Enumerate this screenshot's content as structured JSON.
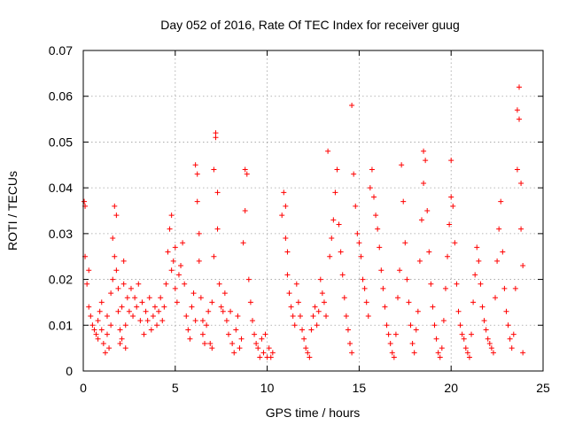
{
  "chart_data": {
    "type": "scatter",
    "title": "Day 052 of 2016, Rate Of TEC Index for receiver guug",
    "xlabel": "GPS time / hours",
    "ylabel": "ROTI / TECUs",
    "xlim": [
      0,
      25
    ],
    "ylim": [
      0,
      0.07
    ],
    "xticks": [
      0,
      5,
      10,
      15,
      20,
      25
    ],
    "xtick_labels": [
      "0",
      "5",
      "10",
      "15",
      "20",
      "25"
    ],
    "yticks": [
      0,
      0.01,
      0.02,
      0.03,
      0.04,
      0.05,
      0.06,
      0.07
    ],
    "ytick_labels": [
      "0",
      "0.01",
      "0.02",
      "0.03",
      "0.04",
      "0.05",
      "0.06",
      "0.07"
    ],
    "grid": true,
    "marker": "plus",
    "color": "#ff0000",
    "series": [
      {
        "name": "ROTI",
        "points": [
          [
            0.05,
            0.037
          ],
          [
            0.1,
            0.036
          ],
          [
            0.1,
            0.025
          ],
          [
            0.2,
            0.019
          ],
          [
            0.3,
            0.022
          ],
          [
            0.3,
            0.014
          ],
          [
            0.4,
            0.012
          ],
          [
            0.5,
            0.01
          ],
          [
            0.6,
            0.009
          ],
          [
            0.7,
            0.008
          ],
          [
            0.8,
            0.007
          ],
          [
            0.8,
            0.011
          ],
          [
            0.9,
            0.013
          ],
          [
            1.0,
            0.015
          ],
          [
            1.0,
            0.009
          ],
          [
            1.1,
            0.006
          ],
          [
            1.2,
            0.004
          ],
          [
            1.3,
            0.008
          ],
          [
            1.3,
            0.012
          ],
          [
            1.4,
            0.005
          ],
          [
            1.5,
            0.01
          ],
          [
            1.5,
            0.017
          ],
          [
            1.6,
            0.02
          ],
          [
            1.6,
            0.029
          ],
          [
            1.7,
            0.025
          ],
          [
            1.7,
            0.036
          ],
          [
            1.8,
            0.034
          ],
          [
            1.8,
            0.022
          ],
          [
            1.9,
            0.018
          ],
          [
            1.9,
            0.013
          ],
          [
            2.0,
            0.009
          ],
          [
            2.0,
            0.006
          ],
          [
            2.1,
            0.007
          ],
          [
            2.1,
            0.014
          ],
          [
            2.2,
            0.019
          ],
          [
            2.2,
            0.024
          ],
          [
            2.3,
            0.005
          ],
          [
            2.3,
            0.01
          ],
          [
            2.4,
            0.016
          ],
          [
            2.5,
            0.013
          ],
          [
            2.6,
            0.018
          ],
          [
            2.7,
            0.012
          ],
          [
            2.8,
            0.016
          ],
          [
            2.9,
            0.014
          ],
          [
            3.0,
            0.019
          ],
          [
            3.1,
            0.011
          ],
          [
            3.2,
            0.015
          ],
          [
            3.3,
            0.008
          ],
          [
            3.4,
            0.013
          ],
          [
            3.5,
            0.011
          ],
          [
            3.6,
            0.016
          ],
          [
            3.7,
            0.009
          ],
          [
            3.8,
            0.012
          ],
          [
            3.9,
            0.014
          ],
          [
            4.0,
            0.01
          ],
          [
            4.1,
            0.013
          ],
          [
            4.2,
            0.016
          ],
          [
            4.3,
            0.011
          ],
          [
            4.4,
            0.014
          ],
          [
            4.5,
            0.019
          ],
          [
            4.6,
            0.026
          ],
          [
            4.7,
            0.031
          ],
          [
            4.8,
            0.034
          ],
          [
            4.8,
            0.022
          ],
          [
            4.9,
            0.024
          ],
          [
            5.0,
            0.027
          ],
          [
            5.0,
            0.018
          ],
          [
            5.1,
            0.015
          ],
          [
            5.2,
            0.021
          ],
          [
            5.3,
            0.023
          ],
          [
            5.4,
            0.028
          ],
          [
            5.5,
            0.019
          ],
          [
            5.6,
            0.012
          ],
          [
            5.7,
            0.009
          ],
          [
            5.8,
            0.007
          ],
          [
            5.9,
            0.014
          ],
          [
            6.0,
            0.017
          ],
          [
            6.1,
            0.011
          ],
          [
            6.1,
            0.045
          ],
          [
            6.2,
            0.043
          ],
          [
            6.2,
            0.037
          ],
          [
            6.3,
            0.03
          ],
          [
            6.3,
            0.024
          ],
          [
            6.4,
            0.016
          ],
          [
            6.5,
            0.011
          ],
          [
            6.5,
            0.008
          ],
          [
            6.6,
            0.006
          ],
          [
            6.7,
            0.01
          ],
          [
            6.8,
            0.013
          ],
          [
            6.9,
            0.006
          ],
          [
            7.0,
            0.005
          ],
          [
            7.0,
            0.015
          ],
          [
            7.1,
            0.025
          ],
          [
            7.1,
            0.044
          ],
          [
            7.2,
            0.052
          ],
          [
            7.2,
            0.051
          ],
          [
            7.3,
            0.039
          ],
          [
            7.3,
            0.031
          ],
          [
            7.4,
            0.019
          ],
          [
            7.5,
            0.014
          ],
          [
            7.6,
            0.013
          ],
          [
            7.7,
            0.017
          ],
          [
            7.8,
            0.011
          ],
          [
            7.9,
            0.008
          ],
          [
            8.0,
            0.013
          ],
          [
            8.1,
            0.006
          ],
          [
            8.2,
            0.004
          ],
          [
            8.3,
            0.009
          ],
          [
            8.4,
            0.012
          ],
          [
            8.5,
            0.005
          ],
          [
            8.6,
            0.007
          ],
          [
            8.7,
            0.028
          ],
          [
            8.8,
            0.035
          ],
          [
            8.8,
            0.044
          ],
          [
            8.9,
            0.043
          ],
          [
            9.0,
            0.02
          ],
          [
            9.1,
            0.015
          ],
          [
            9.2,
            0.011
          ],
          [
            9.3,
            0.008
          ],
          [
            9.4,
            0.006
          ],
          [
            9.5,
            0.005
          ],
          [
            9.6,
            0.003
          ],
          [
            9.7,
            0.007
          ],
          [
            9.8,
            0.004
          ],
          [
            9.9,
            0.008
          ],
          [
            10.0,
            0.003
          ],
          [
            10.1,
            0.005
          ],
          [
            10.2,
            0.003
          ],
          [
            10.3,
            0.004
          ],
          [
            10.8,
            0.034
          ],
          [
            10.9,
            0.039
          ],
          [
            11.0,
            0.036
          ],
          [
            11.0,
            0.029
          ],
          [
            11.1,
            0.026
          ],
          [
            11.1,
            0.021
          ],
          [
            11.2,
            0.017
          ],
          [
            11.3,
            0.014
          ],
          [
            11.4,
            0.012
          ],
          [
            11.5,
            0.01
          ],
          [
            11.6,
            0.019
          ],
          [
            11.7,
            0.015
          ],
          [
            11.8,
            0.012
          ],
          [
            11.9,
            0.009
          ],
          [
            12.0,
            0.007
          ],
          [
            12.1,
            0.005
          ],
          [
            12.2,
            0.004
          ],
          [
            12.3,
            0.003
          ],
          [
            12.4,
            0.009
          ],
          [
            12.5,
            0.012
          ],
          [
            12.6,
            0.014
          ],
          [
            12.7,
            0.01
          ],
          [
            12.8,
            0.013
          ],
          [
            12.9,
            0.02
          ],
          [
            13.0,
            0.017
          ],
          [
            13.1,
            0.015
          ],
          [
            13.2,
            0.012
          ],
          [
            13.3,
            0.048
          ],
          [
            13.4,
            0.025
          ],
          [
            13.5,
            0.029
          ],
          [
            13.6,
            0.033
          ],
          [
            13.7,
            0.039
          ],
          [
            13.8,
            0.044
          ],
          [
            13.9,
            0.032
          ],
          [
            14.0,
            0.026
          ],
          [
            14.1,
            0.021
          ],
          [
            14.2,
            0.016
          ],
          [
            14.3,
            0.012
          ],
          [
            14.4,
            0.009
          ],
          [
            14.5,
            0.006
          ],
          [
            14.6,
            0.004
          ],
          [
            14.6,
            0.058
          ],
          [
            14.7,
            0.043
          ],
          [
            14.8,
            0.036
          ],
          [
            14.9,
            0.03
          ],
          [
            15.0,
            0.028
          ],
          [
            15.1,
            0.025
          ],
          [
            15.2,
            0.02
          ],
          [
            15.3,
            0.018
          ],
          [
            15.4,
            0.015
          ],
          [
            15.5,
            0.012
          ],
          [
            15.6,
            0.04
          ],
          [
            15.7,
            0.044
          ],
          [
            15.8,
            0.038
          ],
          [
            15.9,
            0.034
          ],
          [
            16.0,
            0.031
          ],
          [
            16.1,
            0.027
          ],
          [
            16.2,
            0.022
          ],
          [
            16.3,
            0.018
          ],
          [
            16.4,
            0.014
          ],
          [
            16.5,
            0.01
          ],
          [
            16.6,
            0.008
          ],
          [
            16.7,
            0.006
          ],
          [
            16.8,
            0.004
          ],
          [
            16.9,
            0.003
          ],
          [
            17.0,
            0.008
          ],
          [
            17.1,
            0.016
          ],
          [
            17.2,
            0.022
          ],
          [
            17.3,
            0.045
          ],
          [
            17.4,
            0.037
          ],
          [
            17.5,
            0.028
          ],
          [
            17.6,
            0.02
          ],
          [
            17.7,
            0.015
          ],
          [
            17.8,
            0.01
          ],
          [
            17.9,
            0.006
          ],
          [
            18.0,
            0.004
          ],
          [
            18.1,
            0.009
          ],
          [
            18.2,
            0.013
          ],
          [
            18.3,
            0.024
          ],
          [
            18.4,
            0.033
          ],
          [
            18.5,
            0.041
          ],
          [
            18.5,
            0.048
          ],
          [
            18.6,
            0.046
          ],
          [
            18.7,
            0.035
          ],
          [
            18.8,
            0.026
          ],
          [
            18.9,
            0.019
          ],
          [
            19.0,
            0.014
          ],
          [
            19.1,
            0.01
          ],
          [
            19.2,
            0.007
          ],
          [
            19.3,
            0.004
          ],
          [
            19.4,
            0.003
          ],
          [
            19.5,
            0.005
          ],
          [
            19.6,
            0.011
          ],
          [
            19.7,
            0.018
          ],
          [
            19.8,
            0.025
          ],
          [
            19.9,
            0.032
          ],
          [
            20.0,
            0.038
          ],
          [
            20.0,
            0.046
          ],
          [
            20.1,
            0.036
          ],
          [
            20.2,
            0.028
          ],
          [
            20.3,
            0.019
          ],
          [
            20.4,
            0.013
          ],
          [
            20.5,
            0.01
          ],
          [
            20.6,
            0.008
          ],
          [
            20.7,
            0.007
          ],
          [
            20.8,
            0.005
          ],
          [
            20.9,
            0.004
          ],
          [
            21.0,
            0.003
          ],
          [
            21.1,
            0.008
          ],
          [
            21.2,
            0.015
          ],
          [
            21.3,
            0.021
          ],
          [
            21.4,
            0.027
          ],
          [
            21.5,
            0.024
          ],
          [
            21.6,
            0.019
          ],
          [
            21.7,
            0.014
          ],
          [
            21.8,
            0.011
          ],
          [
            21.9,
            0.009
          ],
          [
            22.0,
            0.007
          ],
          [
            22.1,
            0.006
          ],
          [
            22.2,
            0.005
          ],
          [
            22.3,
            0.004
          ],
          [
            22.4,
            0.016
          ],
          [
            22.5,
            0.024
          ],
          [
            22.6,
            0.031
          ],
          [
            22.7,
            0.037
          ],
          [
            22.8,
            0.026
          ],
          [
            22.9,
            0.018
          ],
          [
            23.0,
            0.013
          ],
          [
            23.1,
            0.01
          ],
          [
            23.2,
            0.007
          ],
          [
            23.3,
            0.005
          ],
          [
            23.4,
            0.008
          ],
          [
            23.5,
            0.018
          ],
          [
            23.6,
            0.044
          ],
          [
            23.6,
            0.057
          ],
          [
            23.7,
            0.062
          ],
          [
            23.7,
            0.055
          ],
          [
            23.8,
            0.041
          ],
          [
            23.8,
            0.031
          ],
          [
            23.9,
            0.023
          ],
          [
            23.9,
            0.004
          ]
        ]
      }
    ]
  }
}
